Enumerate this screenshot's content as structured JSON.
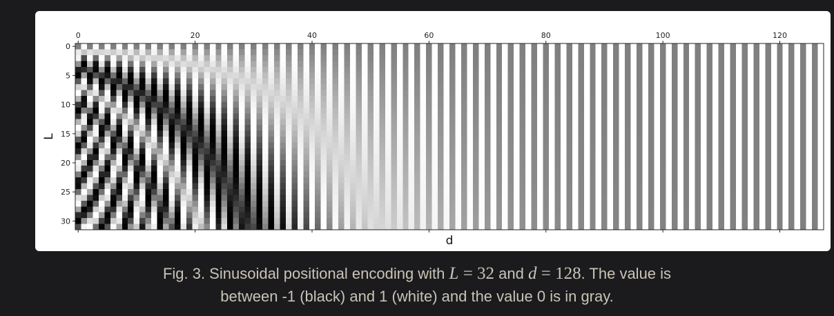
{
  "chart_data": {
    "type": "heatmap",
    "encoding": "sinusoidal",
    "rows": 32,
    "cols": 128,
    "value_range": [
      -1,
      1
    ],
    "colormap": "gray",
    "xlabel": "d",
    "ylabel": "L",
    "x_ticks": [
      "0",
      "20",
      "40",
      "60",
      "80",
      "100",
      "120"
    ],
    "y_ticks": [
      "0",
      "5",
      "10",
      "15",
      "20",
      "25",
      "30"
    ],
    "x_tick_position": "top"
  },
  "caption": {
    "part1": "Fig. 3. Sinusoidal positional encoding with ",
    "L_var": "L",
    "eq1": " = 32",
    "part2": " and ",
    "d_var": "d",
    "eq2": " = 128",
    "part3": ". The value is",
    "line2": "between -1 (black) and 1 (white) and the value 0 is in gray."
  }
}
